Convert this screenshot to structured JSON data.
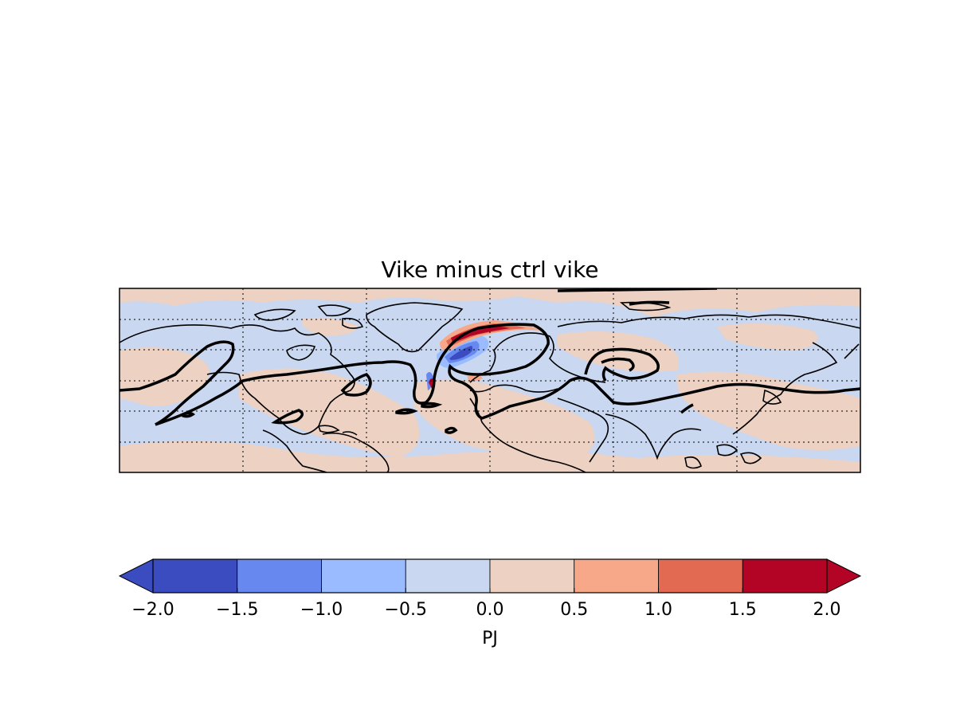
{
  "figure": {
    "title": "Vike minus ctrl vike"
  },
  "chart_data": {
    "type": "heatmap",
    "title": "Vike minus ctrl vike",
    "map_projection": "cylindrical (global, cropped to ~30S–90N)",
    "gridlines": "dotted",
    "colormap": "coolwarm",
    "colorbar": {
      "orientation": "horizontal",
      "label": "PJ",
      "extend": "both",
      "levels": [
        -2.0,
        -1.5,
        -1.0,
        -0.5,
        0.0,
        0.5,
        1.0,
        1.5,
        2.0
      ],
      "tick_labels": [
        "−2.0",
        "−1.5",
        "−1.0",
        "−0.5",
        "0.0",
        "0.5",
        "1.0",
        "1.5",
        "2.0"
      ],
      "colors": [
        "#3b4cc0",
        "#6788ee",
        "#9abbff",
        "#c9d7f0",
        "#edd1c2",
        "#f7a889",
        "#e26952",
        "#b40426"
      ],
      "under_color": "#3b4cc0",
      "over_color": "#b40426"
    },
    "field_summary": "Mostly weak anomalies between -0.5 and 0.5 PJ globally; a strong dipole over the North Atlantic near Greenland/Iceland with positive values (>1.5) on the north side and negative values (< -1.5) just south.",
    "overlays": [
      "coastlines",
      "thick black contour (jet position)"
    ]
  }
}
